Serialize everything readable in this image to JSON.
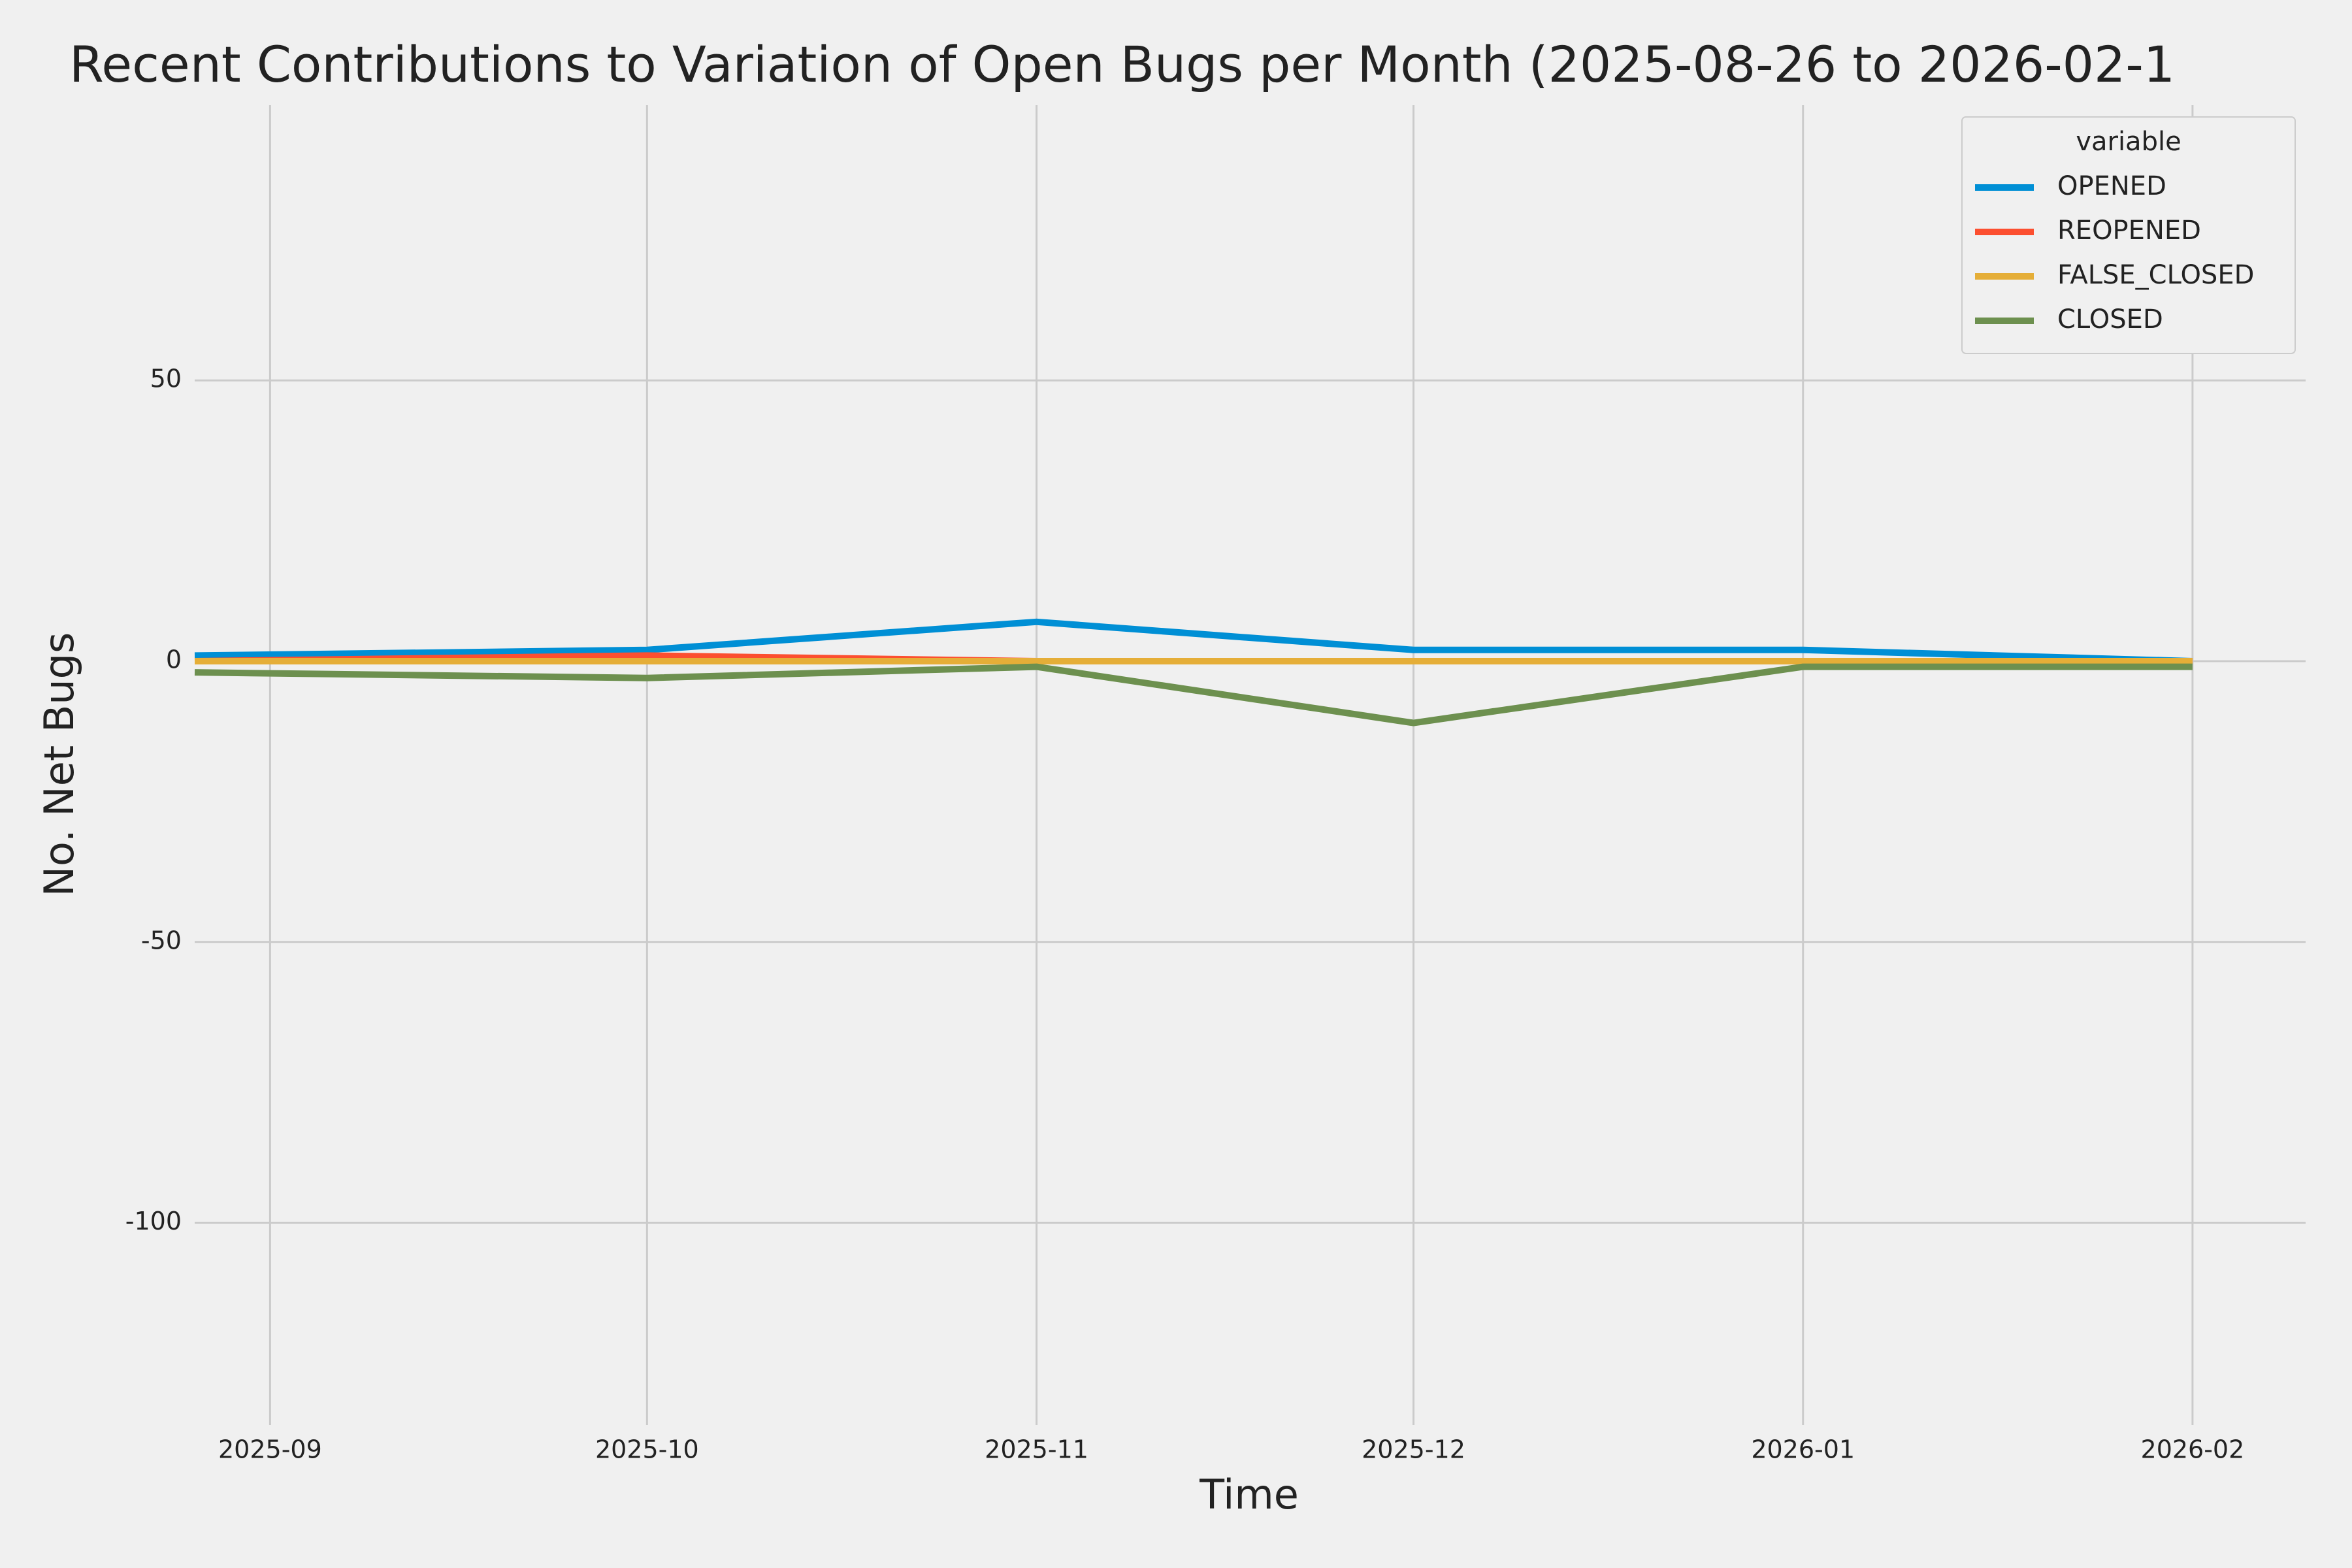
{
  "chart_data": {
    "type": "line",
    "title": "Recent Contributions to Variation of Open Bugs per Month (2025-08-26 to 2026-02-1",
    "x_label": "Time",
    "y_label": "No. Net Bugs",
    "x": [
      "2025-08-26",
      "2025-10",
      "2025-11",
      "2025-12",
      "2026-01",
      "2026-02"
    ],
    "series": [
      {
        "name": "OPENED",
        "color": "#008fd5",
        "values": [
          1,
          2,
          7,
          2,
          2,
          0
        ]
      },
      {
        "name": "REOPENED",
        "color": "#fc4f30",
        "values": [
          0,
          1,
          0,
          0,
          0,
          0
        ]
      },
      {
        "name": "FALSE_CLOSED",
        "color": "#e5ae38",
        "values": [
          0,
          0,
          0,
          0,
          0,
          0
        ]
      },
      {
        "name": "CLOSED",
        "color": "#6d904f",
        "values": [
          -2,
          -3,
          -1,
          -11,
          -1,
          -1
        ]
      }
    ],
    "xlim": [
      "2025-08-26",
      "2026-02-10"
    ],
    "xticks": [
      "2025-09",
      "2025-10",
      "2025-11",
      "2025-12",
      "2026-01",
      "2026-02"
    ],
    "ylim": [
      -136,
      99
    ],
    "yticks": [
      -100,
      -50,
      0,
      50
    ],
    "grid": true,
    "legend_title": "variable",
    "legend_position": "upper right"
  }
}
